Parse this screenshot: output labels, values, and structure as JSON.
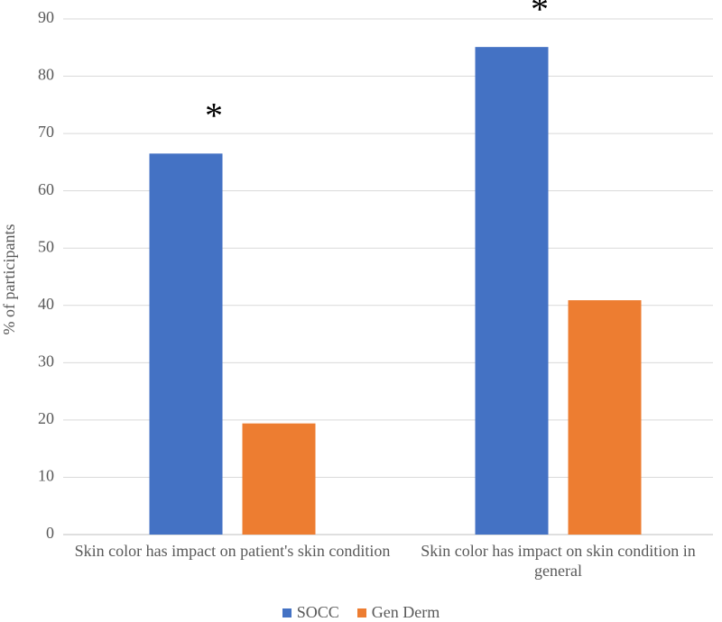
{
  "chart_data": {
    "type": "bar",
    "y_label": "% of participants",
    "categories": [
      "Skin color has impact on patient's skin condition",
      "Skin color has impact on skin condition in general"
    ],
    "series": [
      {
        "name": "SOCC",
        "color": "#4472c4",
        "values": [
          66.5,
          85.1
        ]
      },
      {
        "name": "Gen Derm",
        "color": "#ed7d31",
        "values": [
          19.4,
          40.9
        ]
      }
    ],
    "annotations": [
      "*",
      "*"
    ],
    "ylim": [
      0,
      90
    ],
    "yticks": [
      0,
      10,
      20,
      30,
      40,
      50,
      60,
      70,
      80,
      90
    ],
    "grid": true
  }
}
